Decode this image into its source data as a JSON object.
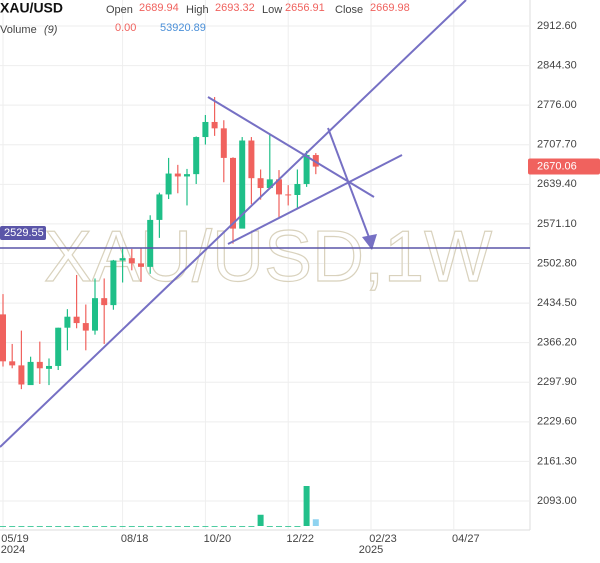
{
  "chart_data": {
    "type": "candlestick",
    "symbol": "XAU/USD",
    "watermark": "XAU/USD,1W",
    "legend": {
      "open_label": "Open",
      "open": "2689.94",
      "high_label": "High",
      "high": "2693.32",
      "low_label": "Low",
      "low": "2656.91",
      "close_label": "Close",
      "close": "2669.98",
      "volume_label": "Volume",
      "volume_period": "(9)",
      "volume_value_1": "0.00",
      "volume_value_2": "53920.89"
    },
    "categories": [
      "05/19",
      null,
      null,
      null,
      null,
      null,
      null,
      null,
      null,
      null,
      null,
      null,
      null,
      "08/18",
      null,
      null,
      null,
      null,
      null,
      null,
      null,
      null,
      "10/20",
      null,
      null,
      null,
      null,
      null,
      null,
      null,
      null,
      "12/22",
      null,
      null,
      null,
      null,
      null,
      null,
      null,
      null,
      "02/23",
      null,
      null,
      null,
      null,
      null,
      null,
      null,
      null,
      "04/27"
    ],
    "year_labels": [
      "2024",
      "2025"
    ],
    "open": [
      2415,
      2334,
      2327,
      2293,
      2333,
      2321,
      2326,
      2392,
      2411,
      2400,
      2387,
      2443,
      2431,
      2508,
      2512,
      2503,
      2497,
      2578,
      2622,
      2658,
      2653,
      2657,
      2721,
      2747,
      2736,
      2685,
      2563,
      2715,
      2650,
      2633,
      2648,
      2622,
      2621,
      2640,
      2689.94,
      null,
      null,
      null,
      null,
      null,
      null,
      null,
      null,
      null,
      null,
      null,
      null,
      null,
      null,
      null
    ],
    "high": [
      2450,
      2364,
      2387,
      2342,
      2368,
      2339,
      2392,
      2424,
      2483,
      2432,
      2477,
      2477,
      2509,
      2531,
      2528,
      2529,
      2586,
      2625,
      2685,
      2673,
      2666,
      2722,
      2759,
      2790,
      2750,
      2686,
      2721,
      2721,
      2665,
      2726,
      2664,
      2638,
      2665,
      2697,
      2693.32,
      null,
      null,
      null,
      null,
      null,
      null,
      null,
      null,
      null,
      null,
      null,
      null,
      null,
      null,
      null
    ],
    "low": [
      2325,
      2322,
      2286,
      2294,
      2295,
      2293,
      2319,
      2353,
      2391,
      2353,
      2380,
      2364,
      2423,
      2470,
      2491,
      2471,
      2485,
      2547,
      2614,
      2624,
      2603,
      2640,
      2708,
      2723,
      2643,
      2537,
      2564,
      2605,
      2613,
      2632,
      2583,
      2603,
      2596,
      2635,
      2656.91,
      null,
      null,
      null,
      null,
      null,
      null,
      null,
      null,
      null,
      null,
      null,
      null,
      null,
      null,
      null
    ],
    "close": [
      2334,
      2327,
      2294,
      2333,
      2322,
      2326,
      2392,
      2411,
      2400,
      2387,
      2443,
      2431,
      2508,
      2512,
      2503,
      2497,
      2578,
      2622,
      2658,
      2653,
      2657,
      2721,
      2747,
      2736,
      2685,
      2563,
      2715,
      2650,
      2633,
      2648,
      2622,
      2621,
      2640,
      2690,
      2669.98,
      null,
      null,
      null,
      null,
      null,
      null,
      null,
      null,
      null,
      null,
      null,
      null,
      null,
      null,
      null
    ],
    "volume": [
      0,
      0,
      0,
      0,
      0,
      0,
      0,
      0,
      0,
      0,
      0,
      0,
      0,
      0,
      0,
      0,
      0,
      0,
      0,
      0,
      0,
      0,
      0,
      0,
      0,
      0,
      0,
      0,
      90000,
      0,
      0,
      0,
      0,
      320000,
      53920.89,
      null,
      null,
      null,
      null,
      null,
      null,
      null,
      null,
      null,
      null,
      null,
      null,
      null,
      null,
      null
    ],
    "volume_lim": [
      0,
      480000
    ],
    "up_color": "#1fbf88",
    "down_color": "#f0625e",
    "volume_color": "#22c08a",
    "ylim": [
      2042.95,
      2957.46
    ],
    "yticks": [
      {
        "value": 2912.6,
        "label": "2912.60"
      },
      {
        "value": 2844.3,
        "label": "2844.30"
      },
      {
        "value": 2776,
        "label": "2776.00"
      },
      {
        "value": 2707.7,
        "label": "2707.70"
      },
      {
        "value": 2639.4,
        "label": "2639.40"
      },
      {
        "value": 2571.1,
        "label": "2571.10"
      },
      {
        "value": 2502.8,
        "label": "2502.80"
      },
      {
        "value": 2434.5,
        "label": "2434.50"
      },
      {
        "value": 2366.2,
        "label": "2366.20"
      },
      {
        "value": 2297.9,
        "label": "2297.90"
      },
      {
        "value": 2229.6,
        "label": "2229.60"
      },
      {
        "value": 2161.3,
        "label": "2161.30"
      },
      {
        "value": 2093,
        "label": "2093.00"
      }
    ],
    "hline": {
      "value": 2529.55,
      "label": "2529.55",
      "color": "#5a55a8"
    },
    "price_tag": {
      "value": 2670.06,
      "label": "2670.06",
      "color": "#f0625e"
    },
    "grid": true
  }
}
